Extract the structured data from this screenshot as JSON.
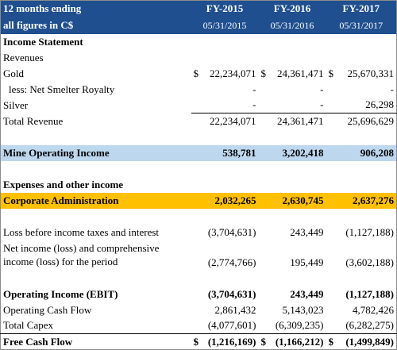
{
  "header": {
    "row1": [
      "12 months ending",
      "FY-2015",
      "FY-2016",
      "FY-2017"
    ],
    "row2": [
      "all figures in C$",
      "05/31/2015",
      "05/31/2016",
      "05/31/2017"
    ]
  },
  "rows": [
    {
      "label": "Income Statement"
    },
    {
      "label": "Revenues"
    },
    {
      "label": "Gold",
      "prefixes": [
        "$",
        "$",
        "$"
      ],
      "values": [
        "22,234,071",
        "24,361,471",
        "25,670,331"
      ]
    },
    {
      "label": "less: Net Smelter Royalty",
      "values": [
        "-",
        "-",
        "-"
      ]
    },
    {
      "label": "Silver",
      "values": [
        "-",
        "-",
        "26,298"
      ]
    },
    {
      "label": "Total Revenue",
      "values": [
        "22,234,071",
        "24,361,471",
        "25,696,629"
      ]
    },
    {
      "label": "Mine Operating Income",
      "values": [
        "538,781",
        "3,202,418",
        "906,208"
      ]
    },
    {
      "label": "Expenses and other income"
    },
    {
      "label": "Corporate Administration",
      "values": [
        "2,032,265",
        "2,630,745",
        "2,637,276"
      ]
    },
    {
      "label": "Loss before income taxes and interest",
      "values": [
        "(3,704,631)",
        "243,449",
        "(1,127,188)"
      ]
    },
    {
      "label": [
        "Net income (loss) and comprehensive",
        "income (loss) for the period"
      ],
      "values": [
        "(2,774,766)",
        "195,449",
        "(3,602,188)"
      ]
    },
    {
      "label": "Operating Income (EBIT)",
      "values": [
        "(3,704,631)",
        "243,449",
        "(1,127,188)"
      ]
    },
    {
      "label": "Operating Cash Flow",
      "values": [
        "2,861,432",
        "5,143,023",
        "4,782,426"
      ]
    },
    {
      "label": "Total Capex",
      "values": [
        "(4,077,601)",
        "(6,309,235)",
        "(6,282,275)"
      ]
    },
    {
      "label": "Free Cash Flow",
      "prefixes": [
        "$",
        "$",
        "$"
      ],
      "values": [
        "(1,216,169)",
        "(1,166,212)",
        "(1,499,849)"
      ]
    }
  ]
}
